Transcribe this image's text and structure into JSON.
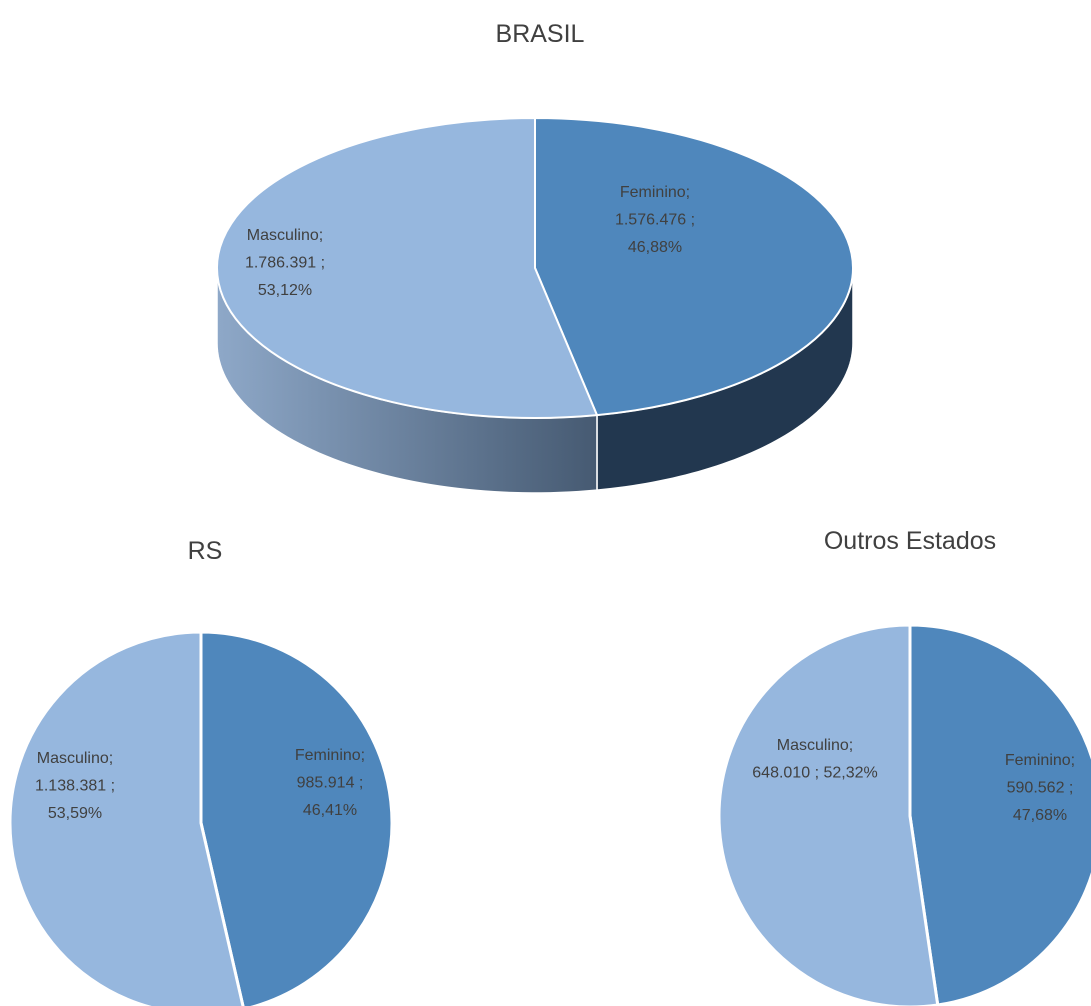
{
  "chart_data": [
    {
      "type": "pie3d",
      "title": "BRASIL",
      "label_separator": ";",
      "categories": [
        "Feminino",
        "Masculino"
      ],
      "values": [
        1576476,
        1786391
      ],
      "value_labels": [
        "1.576.476",
        "1.786.391"
      ],
      "percents": [
        46.88,
        53.12
      ],
      "percent_labels": [
        "46,88%",
        "53,12%"
      ],
      "colors": [
        "#4f87bc",
        "#96b7de"
      ]
    },
    {
      "type": "pie",
      "title": "RS",
      "label_separator": ";",
      "categories": [
        "Feminino",
        "Masculino"
      ],
      "values": [
        985914,
        1138381
      ],
      "value_labels": [
        "985.914",
        "1.138.381"
      ],
      "percents": [
        46.41,
        53.59
      ],
      "percent_labels": [
        "46,41%",
        "53,59%"
      ],
      "colors": [
        "#4f87bc",
        "#96b7de"
      ]
    },
    {
      "type": "pie",
      "title": "Outros Estados",
      "label_separator": ";",
      "categories": [
        "Feminino",
        "Masculino"
      ],
      "values": [
        590562,
        648010
      ],
      "value_labels": [
        "590.562",
        "648.010"
      ],
      "percents": [
        47.68,
        52.32
      ],
      "percent_labels": [
        "47,68%",
        "52,32%"
      ],
      "colors": [
        "#4f87bc",
        "#96b7de"
      ]
    }
  ]
}
